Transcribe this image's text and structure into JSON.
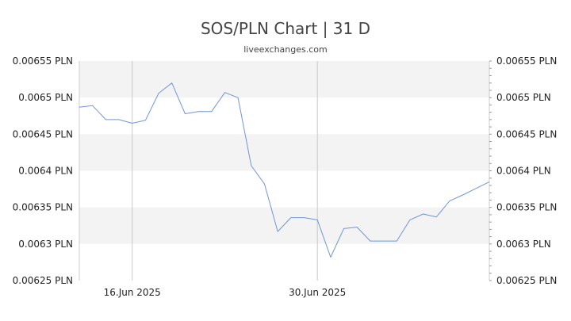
{
  "chart_data": {
    "type": "line",
    "title": "SOS/PLN Chart | 31 D",
    "subtitle": "liveexchanges.com",
    "xlabel": "",
    "ylabel": "",
    "ylim": [
      0.00625,
      0.00655
    ],
    "y_ticks": [
      0.00655,
      0.0065,
      0.00645,
      0.0064,
      0.00635,
      0.0063,
      0.00625
    ],
    "y_tick_labels": [
      "0.00655 PLN",
      "0.0065 PLN",
      "0.00645 PLN",
      "0.0064 PLN",
      "0.00635 PLN",
      "0.0063 PLN",
      "0.00625 PLN"
    ],
    "x_ticks": [
      {
        "label": "16.Jun 2025",
        "index": 4
      },
      {
        "label": "30.Jun 2025",
        "index": 18
      }
    ],
    "x_count": 32,
    "line_color": "#6f96d8",
    "grid": true,
    "series": [
      {
        "values": [
          0.006487,
          0.006489,
          0.00647,
          0.00647,
          0.006465,
          0.006469,
          0.006506,
          0.00652,
          0.006478,
          0.006481,
          0.006481,
          0.006507,
          0.0065,
          0.006407,
          0.006382,
          0.006317,
          0.006336,
          0.006336,
          0.006333,
          0.006282,
          0.006321,
          0.006323,
          0.006304,
          0.006304,
          0.006304,
          0.006333,
          0.006341,
          0.006337,
          0.006359,
          0.006367,
          0.006376,
          0.006385
        ]
      }
    ]
  }
}
